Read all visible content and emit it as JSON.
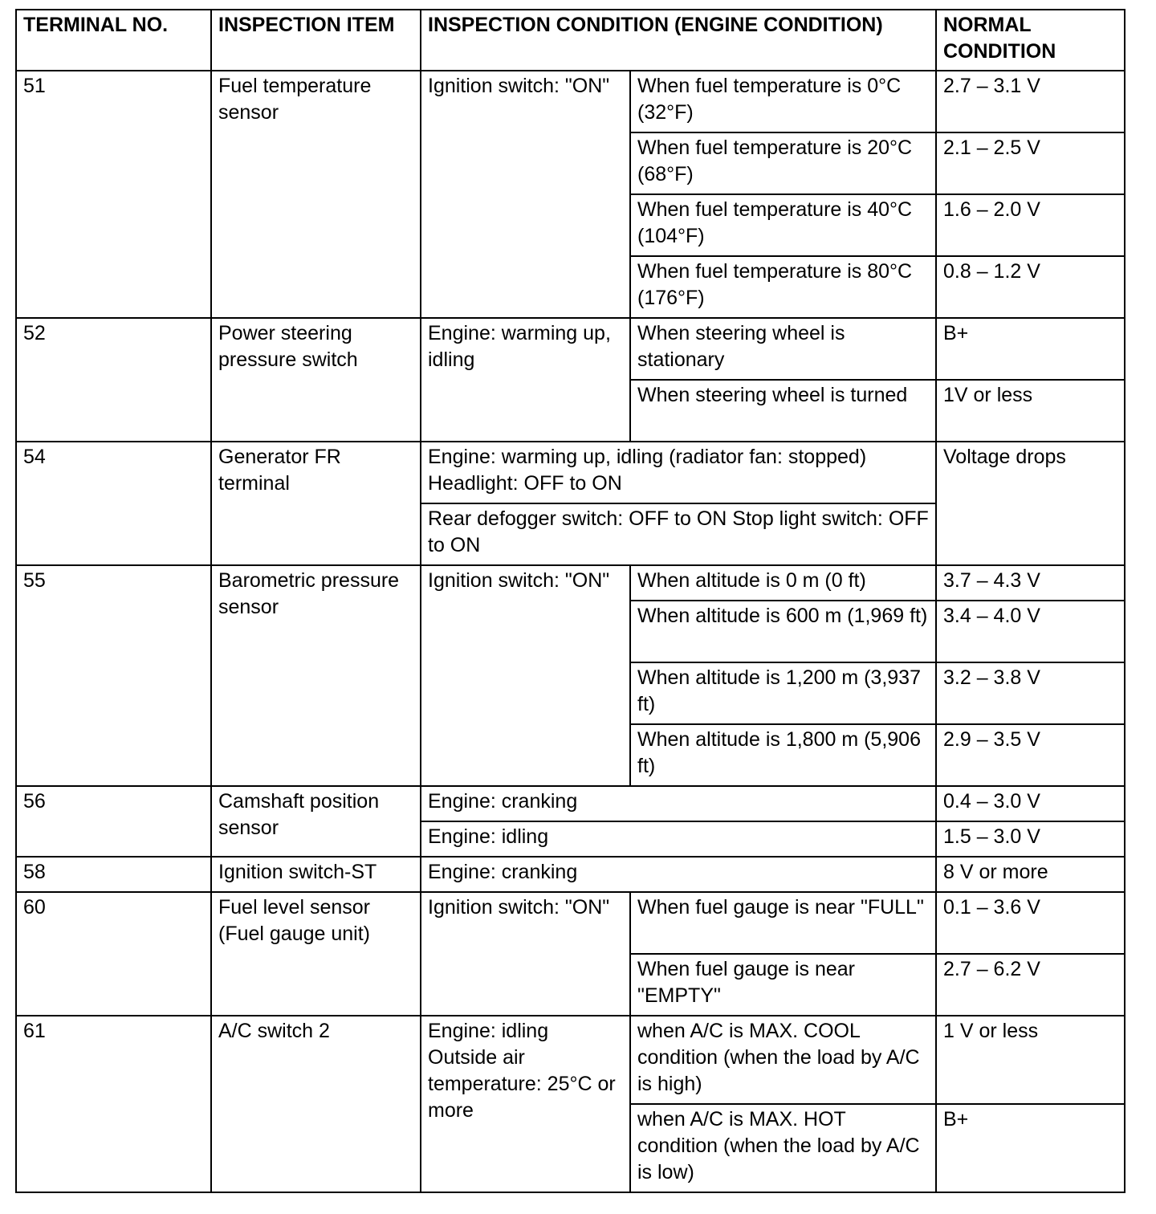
{
  "header": [
    "TERMINAL NO.",
    "INSPECTION ITEM",
    "INSPECTION CONDITION (ENGINE CONDITION)",
    "NORMAL CONDITION"
  ],
  "rows": {
    "t51": {
      "terminal": "51",
      "item": "Fuel temperature sensor",
      "condition": "Ignition switch: \"ON\"",
      "sub": [
        {
          "detail": "When fuel temperature is 0°C (32°F)",
          "normal": "2.7 – 3.1 V"
        },
        {
          "detail": "When fuel temperature is 20°C (68°F)",
          "normal": "2.1 – 2.5 V"
        },
        {
          "detail": "When fuel temperature is 40°C (104°F)",
          "normal": "1.6 – 2.0 V"
        },
        {
          "detail": "When fuel temperature is 80°C (176°F)",
          "normal": "0.8 – 1.2 V"
        }
      ]
    },
    "t52": {
      "terminal": "52",
      "item": "Power steering pressure switch",
      "condition": "Engine: warming up, idling",
      "sub": [
        {
          "detail": "When steering wheel is stationary",
          "normal": "B+"
        },
        {
          "detail": "When steering wheel is turned",
          "normal": "1V or less"
        }
      ]
    },
    "t54": {
      "terminal": "54",
      "item": "Generator FR terminal",
      "conditions": [
        "Engine: warming up, idling (radiator fan: stopped)\nHeadlight: OFF to ON",
        "Rear defogger switch: OFF to ON Stop light switch: OFF to ON"
      ],
      "normal": "Voltage drops"
    },
    "t55": {
      "terminal": "55",
      "item": "Barometric pressure sensor",
      "condition": "Ignition switch: \"ON\"",
      "sub": [
        {
          "detail": "When altitude is 0 m (0 ft)",
          "normal": "3.7 – 4.3 V"
        },
        {
          "detail": "When altitude is 600 m (1,969 ft)",
          "normal": "3.4 – 4.0 V"
        },
        {
          "detail": "When altitude is 1,200 m (3,937 ft)",
          "normal": "3.2 – 3.8 V"
        },
        {
          "detail": "When altitude is 1,800 m (5,906 ft)",
          "normal": "2.9 – 3.5 V"
        }
      ]
    },
    "t56": {
      "terminal": "56",
      "item": "Camshaft position sensor",
      "sub": [
        {
          "condition": "Engine: cranking",
          "normal": "0.4 – 3.0 V"
        },
        {
          "condition": "Engine: idling",
          "normal": "1.5 – 3.0 V"
        }
      ]
    },
    "t58": {
      "terminal": "58",
      "item": "Ignition switch-ST",
      "condition": "Engine: cranking",
      "normal": "8 V or more"
    },
    "t60": {
      "terminal": "60",
      "item": "Fuel level sensor (Fuel gauge unit)",
      "condition": "Ignition switch: \"ON\"",
      "sub": [
        {
          "detail": "When fuel gauge is near \"FULL\"",
          "normal": "0.1 – 3.6 V"
        },
        {
          "detail": "When fuel gauge is near \"EMPTY\"",
          "normal": "2.7 – 6.2 V"
        }
      ]
    },
    "t61": {
      "terminal": "61",
      "item": "A/C switch 2",
      "condition": "Engine: idling\nOutside air temperature: 25°C or more",
      "sub": [
        {
          "detail": "when A/C is MAX. COOL condition (when the load by A/C is high)",
          "normal": "1 V or less"
        },
        {
          "detail": "when A/C is MAX. HOT condition (when the load by A/C is low)",
          "normal": "B+"
        }
      ]
    }
  }
}
